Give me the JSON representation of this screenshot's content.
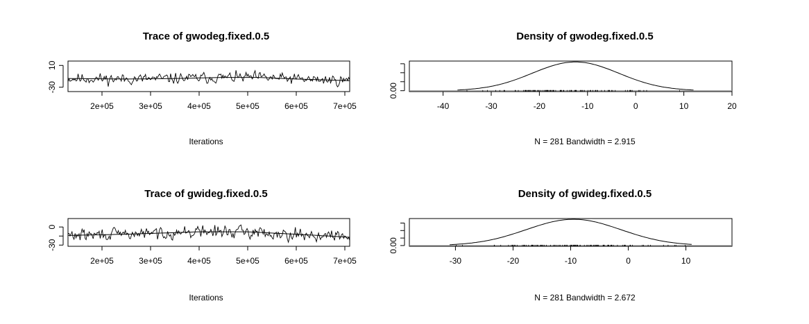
{
  "chart_data": [
    {
      "type": "line",
      "panel": "trace",
      "title": "Trace of gwodeg.fixed.0.5",
      "xlabel": "Iterations",
      "ylabel": "",
      "xlim": [
        130000,
        710000
      ],
      "ylim": [
        -38,
        18
      ],
      "x_ticks": [
        200000,
        300000,
        400000,
        500000,
        600000,
        700000
      ],
      "x_tick_labels": [
        "2e+05",
        "3e+05",
        "4e+05",
        "5e+05",
        "6e+05",
        "7e+05"
      ],
      "y_ticks": [
        -30,
        10
      ],
      "y_tick_labels": [
        "-30",
        "10"
      ],
      "n": 281,
      "mean": -13,
      "noise_sd": 7,
      "smooth_x": [
        130000,
        250000,
        350000,
        450000,
        520000,
        600000,
        710000
      ],
      "smooth_y": [
        -14,
        -15,
        -14,
        -12,
        -12,
        -15,
        -18
      ],
      "seed": 11
    },
    {
      "type": "area",
      "panel": "density",
      "title": "Density of gwodeg.fixed.0.5",
      "xlabel": "N = 281   Bandwidth = 2.915",
      "ylabel": "",
      "xlim": [
        -47,
        20
      ],
      "ylim": [
        -0.001,
        0.033
      ],
      "x_ticks": [
        -40,
        -30,
        -20,
        -10,
        0,
        10,
        20
      ],
      "x_tick_labels": [
        "-40",
        "-30",
        "-20",
        "-10",
        "0",
        "10",
        "20"
      ],
      "y_ticks": [
        0.0,
        0.01,
        0.02,
        0.03
      ],
      "y_tick_labels": [
        "0.00",
        "",
        "",
        ""
      ],
      "mean": -12.5,
      "sd": 9,
      "range": [
        -37,
        12
      ],
      "peak": 0.032
    },
    {
      "type": "line",
      "panel": "trace",
      "title": "Trace of gwideg.fixed.0.5",
      "xlabel": "Iterations",
      "ylabel": "",
      "xlim": [
        130000,
        710000
      ],
      "ylim": [
        -32,
        14
      ],
      "x_ticks": [
        200000,
        300000,
        400000,
        500000,
        600000,
        700000
      ],
      "x_tick_labels": [
        "2e+05",
        "3e+05",
        "4e+05",
        "5e+05",
        "6e+05",
        "7e+05"
      ],
      "y_ticks": [
        -30,
        -15,
        0
      ],
      "y_tick_labels": [
        "-30",
        "",
        "0"
      ],
      "n": 281,
      "mean": -10,
      "noise_sd": 7,
      "smooth_x": [
        130000,
        250000,
        400000,
        500000,
        600000,
        710000
      ],
      "smooth_y": [
        -14,
        -12,
        -8,
        -8,
        -12,
        -17
      ],
      "seed": 29
    },
    {
      "type": "area",
      "panel": "density",
      "title": "Density of gwideg.fixed.0.5",
      "xlabel": "N = 281   Bandwidth = 2.672",
      "ylabel": "",
      "xlim": [
        -38,
        18
      ],
      "ylim": [
        -0.001,
        0.036
      ],
      "x_ticks": [
        -30,
        -20,
        -10,
        0,
        10
      ],
      "x_tick_labels": [
        "-30",
        "-20",
        "-10",
        "0",
        "10"
      ],
      "y_ticks": [
        0.0,
        0.01,
        0.02,
        0.03
      ],
      "y_tick_labels": [
        "0.00",
        "",
        "",
        ""
      ],
      "mean": -9.5,
      "sd": 8.2,
      "range": [
        -31,
        11
      ],
      "peak": 0.035
    }
  ]
}
